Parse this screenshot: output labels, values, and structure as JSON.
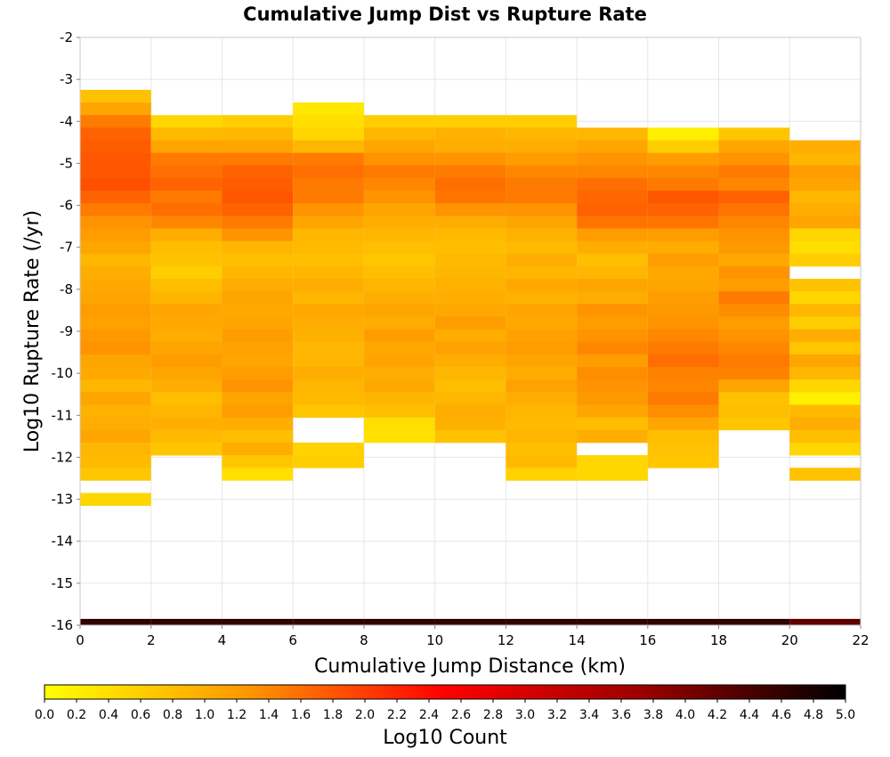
{
  "chart_data": {
    "type": "heatmap",
    "title": "Cumulative Jump Dist vs Rupture Rate",
    "xlabel": "Cumulative Jump Distance (km)",
    "ylabel": "Log10 Rupture Rate (/yr)",
    "xlim": [
      0,
      22
    ],
    "ylim": [
      -16,
      -2
    ],
    "x_ticks": [
      0,
      2,
      4,
      6,
      8,
      10,
      12,
      14,
      16,
      18,
      20,
      22
    ],
    "y_ticks": [
      -2,
      -3,
      -4,
      -5,
      -6,
      -7,
      -8,
      -9,
      -10,
      -11,
      -12,
      -13,
      -14,
      -15,
      -16
    ],
    "grid": true,
    "bin_width_x": 2,
    "bin_height_y": 0.3,
    "colorbar": {
      "label": "Log10 Count",
      "range": [
        0,
        5
      ],
      "ticks": [
        "0.0",
        "0.2",
        "0.4",
        "0.6",
        "0.8",
        "1.0",
        "1.2",
        "1.4",
        "1.6",
        "1.8",
        "2.0",
        "2.2",
        "2.4",
        "2.6",
        "2.8",
        "3.0",
        "3.2",
        "3.4",
        "3.6",
        "3.8",
        "4.0",
        "4.2",
        "4.4",
        "4.6",
        "4.8",
        "5.0"
      ],
      "colormap": [
        "#ffff00",
        "#ff9900",
        "#ff0000",
        "#990000",
        "#000000"
      ]
    },
    "columns": [
      {
        "x0": 0,
        "x1": 2,
        "y_top": -3.25,
        "values": [
          0.75,
          1.1,
          1.5,
          1.7,
          1.75,
          1.8,
          1.8,
          1.85,
          1.7,
          1.5,
          1.3,
          1.2,
          1.1,
          0.9,
          1.0,
          1.05,
          1.1,
          1.2,
          1.15,
          1.25,
          1.3,
          1.1,
          1.05,
          0.9,
          1.1,
          0.95,
          1.0,
          1.1,
          0.9,
          0.85,
          0.7,
          null,
          0.5
        ],
        "bottom": {
          "y": -16,
          "value": 4.6
        }
      },
      {
        "x0": 2,
        "x1": 4,
        "y_top": -3.85,
        "values": [
          0.5,
          0.85,
          1.1,
          1.5,
          1.6,
          1.7,
          1.5,
          1.6,
          1.4,
          1.0,
          0.8,
          0.75,
          0.6,
          0.8,
          0.9,
          1.1,
          1.05,
          1.0,
          1.1,
          1.2,
          1.1,
          1.0,
          0.8,
          0.9,
          1.0,
          0.85,
          0.7
        ],
        "bottom": {
          "y": -16,
          "value": 4.6
        }
      },
      {
        "x0": 4,
        "x1": 6,
        "y_top": -3.85,
        "values": [
          0.6,
          0.9,
          1.1,
          1.5,
          1.7,
          1.75,
          1.8,
          1.7,
          1.5,
          1.3,
          0.9,
          0.8,
          0.9,
          1.0,
          1.1,
          1.05,
          1.1,
          1.2,
          1.15,
          1.1,
          1.2,
          1.3,
          1.1,
          1.2,
          1.0,
          0.8,
          1.0,
          0.7,
          0.4
        ],
        "bottom": {
          "y": -16,
          "value": 4.6
        }
      },
      {
        "x0": 6,
        "x1": 8,
        "y_top": -3.55,
        "values": [
          0.3,
          0.4,
          0.5,
          0.9,
          1.5,
          1.6,
          1.5,
          1.5,
          1.3,
          1.1,
          0.9,
          0.85,
          0.8,
          0.9,
          1.0,
          0.9,
          1.05,
          1.0,
          0.95,
          0.9,
          0.9,
          1.0,
          0.9,
          0.85,
          0.7,
          null,
          null,
          0.55,
          0.6
        ],
        "bottom": {
          "y": -16,
          "value": 4.6
        }
      },
      {
        "x0": 8,
        "x1": 10,
        "y_top": -3.85,
        "values": [
          0.6,
          0.9,
          1.1,
          1.3,
          1.5,
          1.4,
          1.3,
          1.1,
          1.0,
          0.9,
          0.8,
          0.7,
          0.8,
          0.9,
          1.0,
          1.1,
          1.0,
          1.2,
          1.05,
          1.1,
          1.0,
          1.05,
          0.9,
          0.8,
          0.4,
          0.35
        ],
        "bottom": {
          "y": -16,
          "value": 4.6
        }
      },
      {
        "x0": 10,
        "x1": 12,
        "y_top": -3.85,
        "values": [
          0.6,
          0.95,
          1.0,
          1.3,
          1.5,
          1.6,
          1.55,
          1.3,
          1.0,
          0.85,
          0.8,
          0.85,
          0.9,
          0.95,
          1.0,
          1.05,
          1.2,
          1.0,
          1.15,
          1.0,
          0.9,
          0.8,
          0.9,
          1.0,
          0.95,
          0.75
        ],
        "bottom": {
          "y": -16,
          "value": 4.6
        }
      },
      {
        "x0": 12,
        "x1": 14,
        "y_top": -3.85,
        "values": [
          0.6,
          0.9,
          1.0,
          1.2,
          1.4,
          1.5,
          1.5,
          1.3,
          1.1,
          0.95,
          0.85,
          1.0,
          0.9,
          1.05,
          0.95,
          1.1,
          1.05,
          1.15,
          1.2,
          1.1,
          1.0,
          1.15,
          1.0,
          0.9,
          0.85,
          0.9,
          0.8,
          0.85,
          0.55
        ],
        "bottom": {
          "y": -16,
          "value": 4.6
        }
      },
      {
        "x0": 14,
        "x1": 16,
        "y_top": -4.15,
        "values": [
          0.9,
          1.1,
          1.3,
          1.4,
          1.6,
          1.65,
          1.7,
          1.55,
          1.2,
          1.0,
          0.8,
          0.9,
          1.1,
          1.0,
          1.3,
          1.2,
          1.3,
          1.4,
          1.2,
          1.35,
          1.3,
          1.25,
          1.1,
          0.8,
          1.0,
          null,
          0.5,
          0.5
        ],
        "bottom": {
          "y": -16,
          "value": 4.6
        }
      },
      {
        "x0": 16,
        "x1": 18,
        "y_top": -4.15,
        "values": [
          0.2,
          0.6,
          1.2,
          1.4,
          1.5,
          1.8,
          1.7,
          1.55,
          1.2,
          1.0,
          1.2,
          1.05,
          1.1,
          1.2,
          1.25,
          1.3,
          1.4,
          1.5,
          1.6,
          1.45,
          1.4,
          1.5,
          1.35,
          1.1,
          0.8,
          0.75,
          0.7
        ],
        "bottom": {
          "y": -16,
          "value": 4.6
        }
      },
      {
        "x0": 18,
        "x1": 20,
        "y_top": -4.15,
        "values": [
          0.7,
          1.1,
          1.3,
          1.5,
          1.4,
          1.7,
          1.55,
          1.4,
          1.3,
          1.25,
          1.05,
          1.3,
          1.2,
          1.5,
          1.35,
          1.2,
          1.3,
          1.4,
          1.5,
          1.45,
          1.1,
          0.75,
          0.8,
          0.7
        ],
        "bottom": {
          "y": -16,
          "value": 4.6
        }
      },
      {
        "x0": 20,
        "x1": 22,
        "y_top": -4.45,
        "values": [
          1.0,
          0.9,
          1.2,
          1.1,
          0.9,
          1.0,
          1.1,
          0.5,
          0.4,
          0.6,
          null,
          0.75,
          0.5,
          0.9,
          0.6,
          1.0,
          0.7,
          1.1,
          0.9,
          0.5,
          0.2,
          0.85,
          1.0,
          0.8,
          0.5,
          null,
          0.75
        ],
        "bottom": {
          "y": -16,
          "value": 4.2
        }
      }
    ]
  }
}
